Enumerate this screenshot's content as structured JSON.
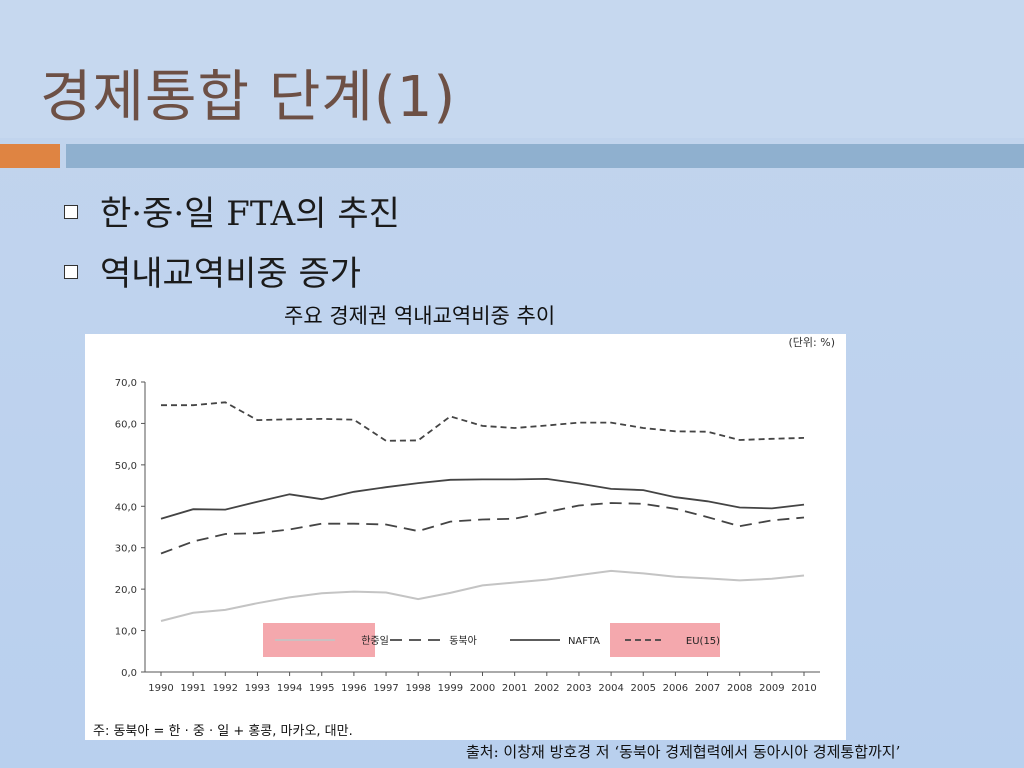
{
  "slide": {
    "title": "경제통합 단계(1)",
    "bullets": [
      "한·중·일 FTA의 추진",
      "역내교역비중 증가"
    ],
    "caption": "주요 경제권 역내교역비중 추이",
    "source": "출처: 이창재 방호경 저 ‘동북아 경제협력에서 동아시아 경제통합까지’",
    "colors": {
      "title": "#6d5045",
      "accent_orange": "#df8442",
      "accent_blue": "#8fb0cf",
      "legend_highlight": "#f4a8ad"
    }
  },
  "chart_data": {
    "type": "line",
    "unit_label": "(단위: %)",
    "note": "주: 동북아 = 한 · 중 · 일 + 홍콩, 마카오, 대만.",
    "categories": [
      "1990",
      "1991",
      "1992",
      "1993",
      "1994",
      "1995",
      "1996",
      "1997",
      "1998",
      "1999",
      "2000",
      "2001",
      "2002",
      "2003",
      "2004",
      "2005",
      "2006",
      "2007",
      "2008",
      "2009",
      "2010"
    ],
    "ylim": [
      0,
      70
    ],
    "yticks": [
      "0,0",
      "10,0",
      "20,0",
      "30,0",
      "40,0",
      "50,0",
      "60,0",
      "70,0"
    ],
    "grid": false,
    "legend_position": "bottom",
    "series": [
      {
        "name": "한중일",
        "style": "solid-light",
        "color": "#c4c4c4",
        "values": [
          12.3,
          14.3,
          15.0,
          16.6,
          18.0,
          19.0,
          19.4,
          19.2,
          17.6,
          19.1,
          20.9,
          21.6,
          22.3,
          23.4,
          24.4,
          23.8,
          23.0,
          22.6,
          22.1,
          22.5,
          23.3
        ]
      },
      {
        "name": "동북아",
        "style": "long-dash",
        "color": "#444444",
        "values": [
          28.6,
          31.5,
          33.3,
          33.5,
          34.4,
          35.8,
          35.8,
          35.6,
          34.0,
          36.3,
          36.8,
          37.0,
          38.6,
          40.2,
          40.8,
          40.6,
          39.4,
          37.4,
          35.2,
          36.6,
          37.3
        ]
      },
      {
        "name": "NAFTA",
        "style": "solid",
        "color": "#444444",
        "values": [
          37.0,
          39.3,
          39.2,
          41.1,
          42.9,
          41.7,
          43.5,
          44.6,
          45.6,
          46.4,
          46.5,
          46.5,
          46.6,
          45.5,
          44.2,
          43.9,
          42.2,
          41.2,
          39.7,
          39.5,
          40.4
        ]
      },
      {
        "name": "EU(15)",
        "style": "short-dash",
        "color": "#444444",
        "values": [
          64.4,
          64.4,
          65.1,
          60.8,
          61.0,
          61.1,
          60.9,
          55.8,
          55.9,
          61.7,
          59.4,
          58.9,
          59.5,
          60.2,
          60.2,
          58.9,
          58.1,
          58.0,
          56.0,
          56.3,
          56.5
        ]
      }
    ]
  }
}
